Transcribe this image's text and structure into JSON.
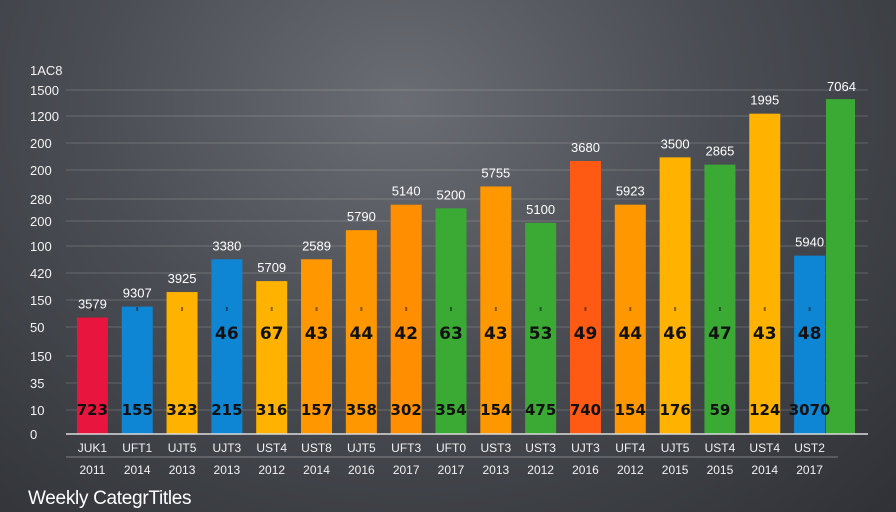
{
  "footer_title": "Weekly CategrTitles",
  "chart_data": {
    "type": "bar",
    "title": "",
    "xlabel": "",
    "ylabel": "",
    "y_ticks": [
      "1AC8",
      "1500",
      "1200",
      "200",
      "200",
      "280",
      "200",
      "100",
      "420",
      "150",
      "50",
      "150",
      "35",
      "10",
      "0"
    ],
    "grid": true,
    "categories": [
      {
        "name": "JUK1",
        "year": "2011"
      },
      {
        "name": "UFT1",
        "year": "2014"
      },
      {
        "name": "UJT5",
        "year": "2013"
      },
      {
        "name": "UJT3",
        "year": "2013"
      },
      {
        "name": "UST4",
        "year": "2012"
      },
      {
        "name": "UST8",
        "year": "2014"
      },
      {
        "name": "UJT5",
        "year": "2016"
      },
      {
        "name": "UFT3",
        "year": "2017"
      },
      {
        "name": "UFT0",
        "year": "2017"
      },
      {
        "name": "UST3",
        "year": "2013"
      },
      {
        "name": "UST3",
        "year": "2012"
      },
      {
        "name": "UJT3",
        "year": "2016"
      },
      {
        "name": "UFT4",
        "year": "2012"
      },
      {
        "name": "UJT5",
        "year": "2015"
      },
      {
        "name": "UST4",
        "year": "2015"
      },
      {
        "name": "UST4",
        "year": "2014"
      },
      {
        "name": "UST2",
        "year": "2017"
      }
    ],
    "bars": [
      {
        "value": 0.32,
        "top_label": "3579",
        "mid_label": "",
        "bottom_label": "723",
        "color": "#e8153e"
      },
      {
        "value": 0.35,
        "top_label": "9307",
        "mid_label": "",
        "bottom_label": "155",
        "color": "#0e86d4"
      },
      {
        "value": 0.39,
        "top_label": "3925",
        "mid_label": "",
        "bottom_label": "323",
        "color": "#ffb300"
      },
      {
        "value": 0.48,
        "top_label": "3380",
        "mid_label": "46",
        "bottom_label": "215",
        "color": "#0e86d4"
      },
      {
        "value": 0.42,
        "top_label": "5709",
        "mid_label": "67",
        "bottom_label": "316",
        "color": "#ffb300"
      },
      {
        "value": 0.48,
        "top_label": "2589",
        "mid_label": "43",
        "bottom_label": "157",
        "color": "#ff9800"
      },
      {
        "value": 0.56,
        "top_label": "5790",
        "mid_label": "44",
        "bottom_label": "358",
        "color": "#ff9800"
      },
      {
        "value": 0.63,
        "top_label": "5140",
        "mid_label": "42",
        "bottom_label": "302",
        "color": "#ff8f00"
      },
      {
        "value": 0.62,
        "top_label": "5200",
        "mid_label": "63",
        "bottom_label": "354",
        "color": "#3aaa35"
      },
      {
        "value": 0.68,
        "top_label": "5755",
        "mid_label": "43",
        "bottom_label": "154",
        "color": "#ff9800"
      },
      {
        "value": 0.58,
        "top_label": "5100",
        "mid_label": "53",
        "bottom_label": "475",
        "color": "#3aaa35"
      },
      {
        "value": 0.75,
        "top_label": "3680",
        "mid_label": "49",
        "bottom_label": "740",
        "color": "#ff5a14"
      },
      {
        "value": 0.63,
        "top_label": "5923",
        "mid_label": "44",
        "bottom_label": "154",
        "color": "#ff9800"
      },
      {
        "value": 0.76,
        "top_label": "3500",
        "mid_label": "46",
        "bottom_label": "176",
        "color": "#ffb300"
      },
      {
        "value": 0.74,
        "top_label": "2865",
        "mid_label": "47",
        "bottom_label": "59",
        "color": "#3aaa35"
      },
      {
        "value": 0.88,
        "top_label": "1995",
        "mid_label": "43",
        "bottom_label": "124",
        "color": "#ffb300"
      },
      {
        "value": 0.49,
        "top_label": "5940",
        "mid_label": "48",
        "bottom_label": "3070",
        "color": "#0e86d4"
      }
    ],
    "overlay_bar": {
      "value": 0.92,
      "top_label": "7064",
      "color": "#3aaa35"
    }
  }
}
